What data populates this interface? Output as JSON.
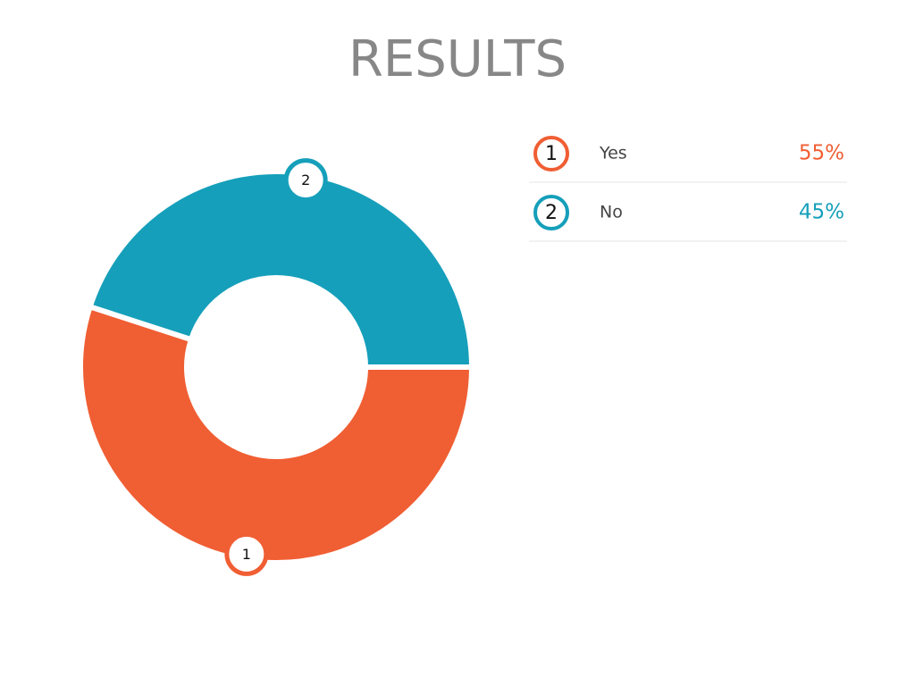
{
  "chart_data": {
    "type": "donut",
    "title": "RESULTS",
    "categories": [
      "Yes",
      "No"
    ],
    "values": [
      55,
      45
    ],
    "value_labels": [
      "55%",
      "45%"
    ],
    "markers": [
      "1",
      "2"
    ],
    "colors": [
      "#f05e33",
      "#159fba"
    ]
  }
}
